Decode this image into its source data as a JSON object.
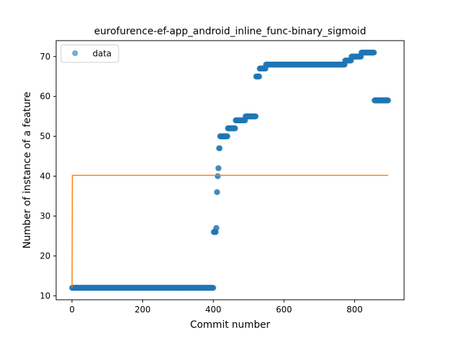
{
  "chart_data": {
    "type": "scatter",
    "title": "eurofurence-ef-app_android_inline_func-binary_sigmoid",
    "xlabel": "Commit number",
    "ylabel": "Number of instance of a feature",
    "xlim": [
      -45,
      940
    ],
    "ylim": [
      9.0,
      74.0
    ],
    "xticks": [
      0,
      200,
      400,
      600,
      800
    ],
    "yticks": [
      10,
      20,
      30,
      40,
      50,
      60,
      70
    ],
    "grid": false,
    "legend": {
      "position": "top-left",
      "entries": [
        "data"
      ]
    },
    "series": [
      {
        "name": "data",
        "kind": "points",
        "color": "#1f77b4",
        "segments": [
          {
            "x_start": 0,
            "x_end": 400,
            "y": 12
          },
          {
            "x_start": 401,
            "x_end": 407,
            "y": 26
          },
          {
            "x_start": 408,
            "x_end": 409,
            "y": 27
          },
          {
            "x_start": 410,
            "x_end": 411,
            "y": 36
          },
          {
            "x_start": 412,
            "x_end": 413,
            "y": 40
          },
          {
            "x_start": 414,
            "x_end": 415,
            "y": 42
          },
          {
            "x_start": 416,
            "x_end": 418,
            "y": 47
          },
          {
            "x_start": 419,
            "x_end": 440,
            "y": 50
          },
          {
            "x_start": 441,
            "x_end": 462,
            "y": 52
          },
          {
            "x_start": 463,
            "x_end": 490,
            "y": 54
          },
          {
            "x_start": 491,
            "x_end": 520,
            "y": 55
          },
          {
            "x_start": 521,
            "x_end": 530,
            "y": 65
          },
          {
            "x_start": 531,
            "x_end": 540,
            "y": 67
          },
          {
            "x_start": 541,
            "x_end": 548,
            "y": 67
          },
          {
            "x_start": 549,
            "x_end": 772,
            "y": 68
          },
          {
            "x_start": 773,
            "x_end": 790,
            "y": 69
          },
          {
            "x_start": 791,
            "x_end": 818,
            "y": 70
          },
          {
            "x_start": 819,
            "x_end": 855,
            "y": 71
          },
          {
            "x_start": 856,
            "x_end": 895,
            "y": 59
          }
        ]
      },
      {
        "name": "",
        "kind": "line",
        "color": "#ff7f0e",
        "points": [
          [
            0,
            12
          ],
          [
            1,
            40.2
          ],
          [
            895,
            40.2
          ]
        ]
      }
    ]
  }
}
